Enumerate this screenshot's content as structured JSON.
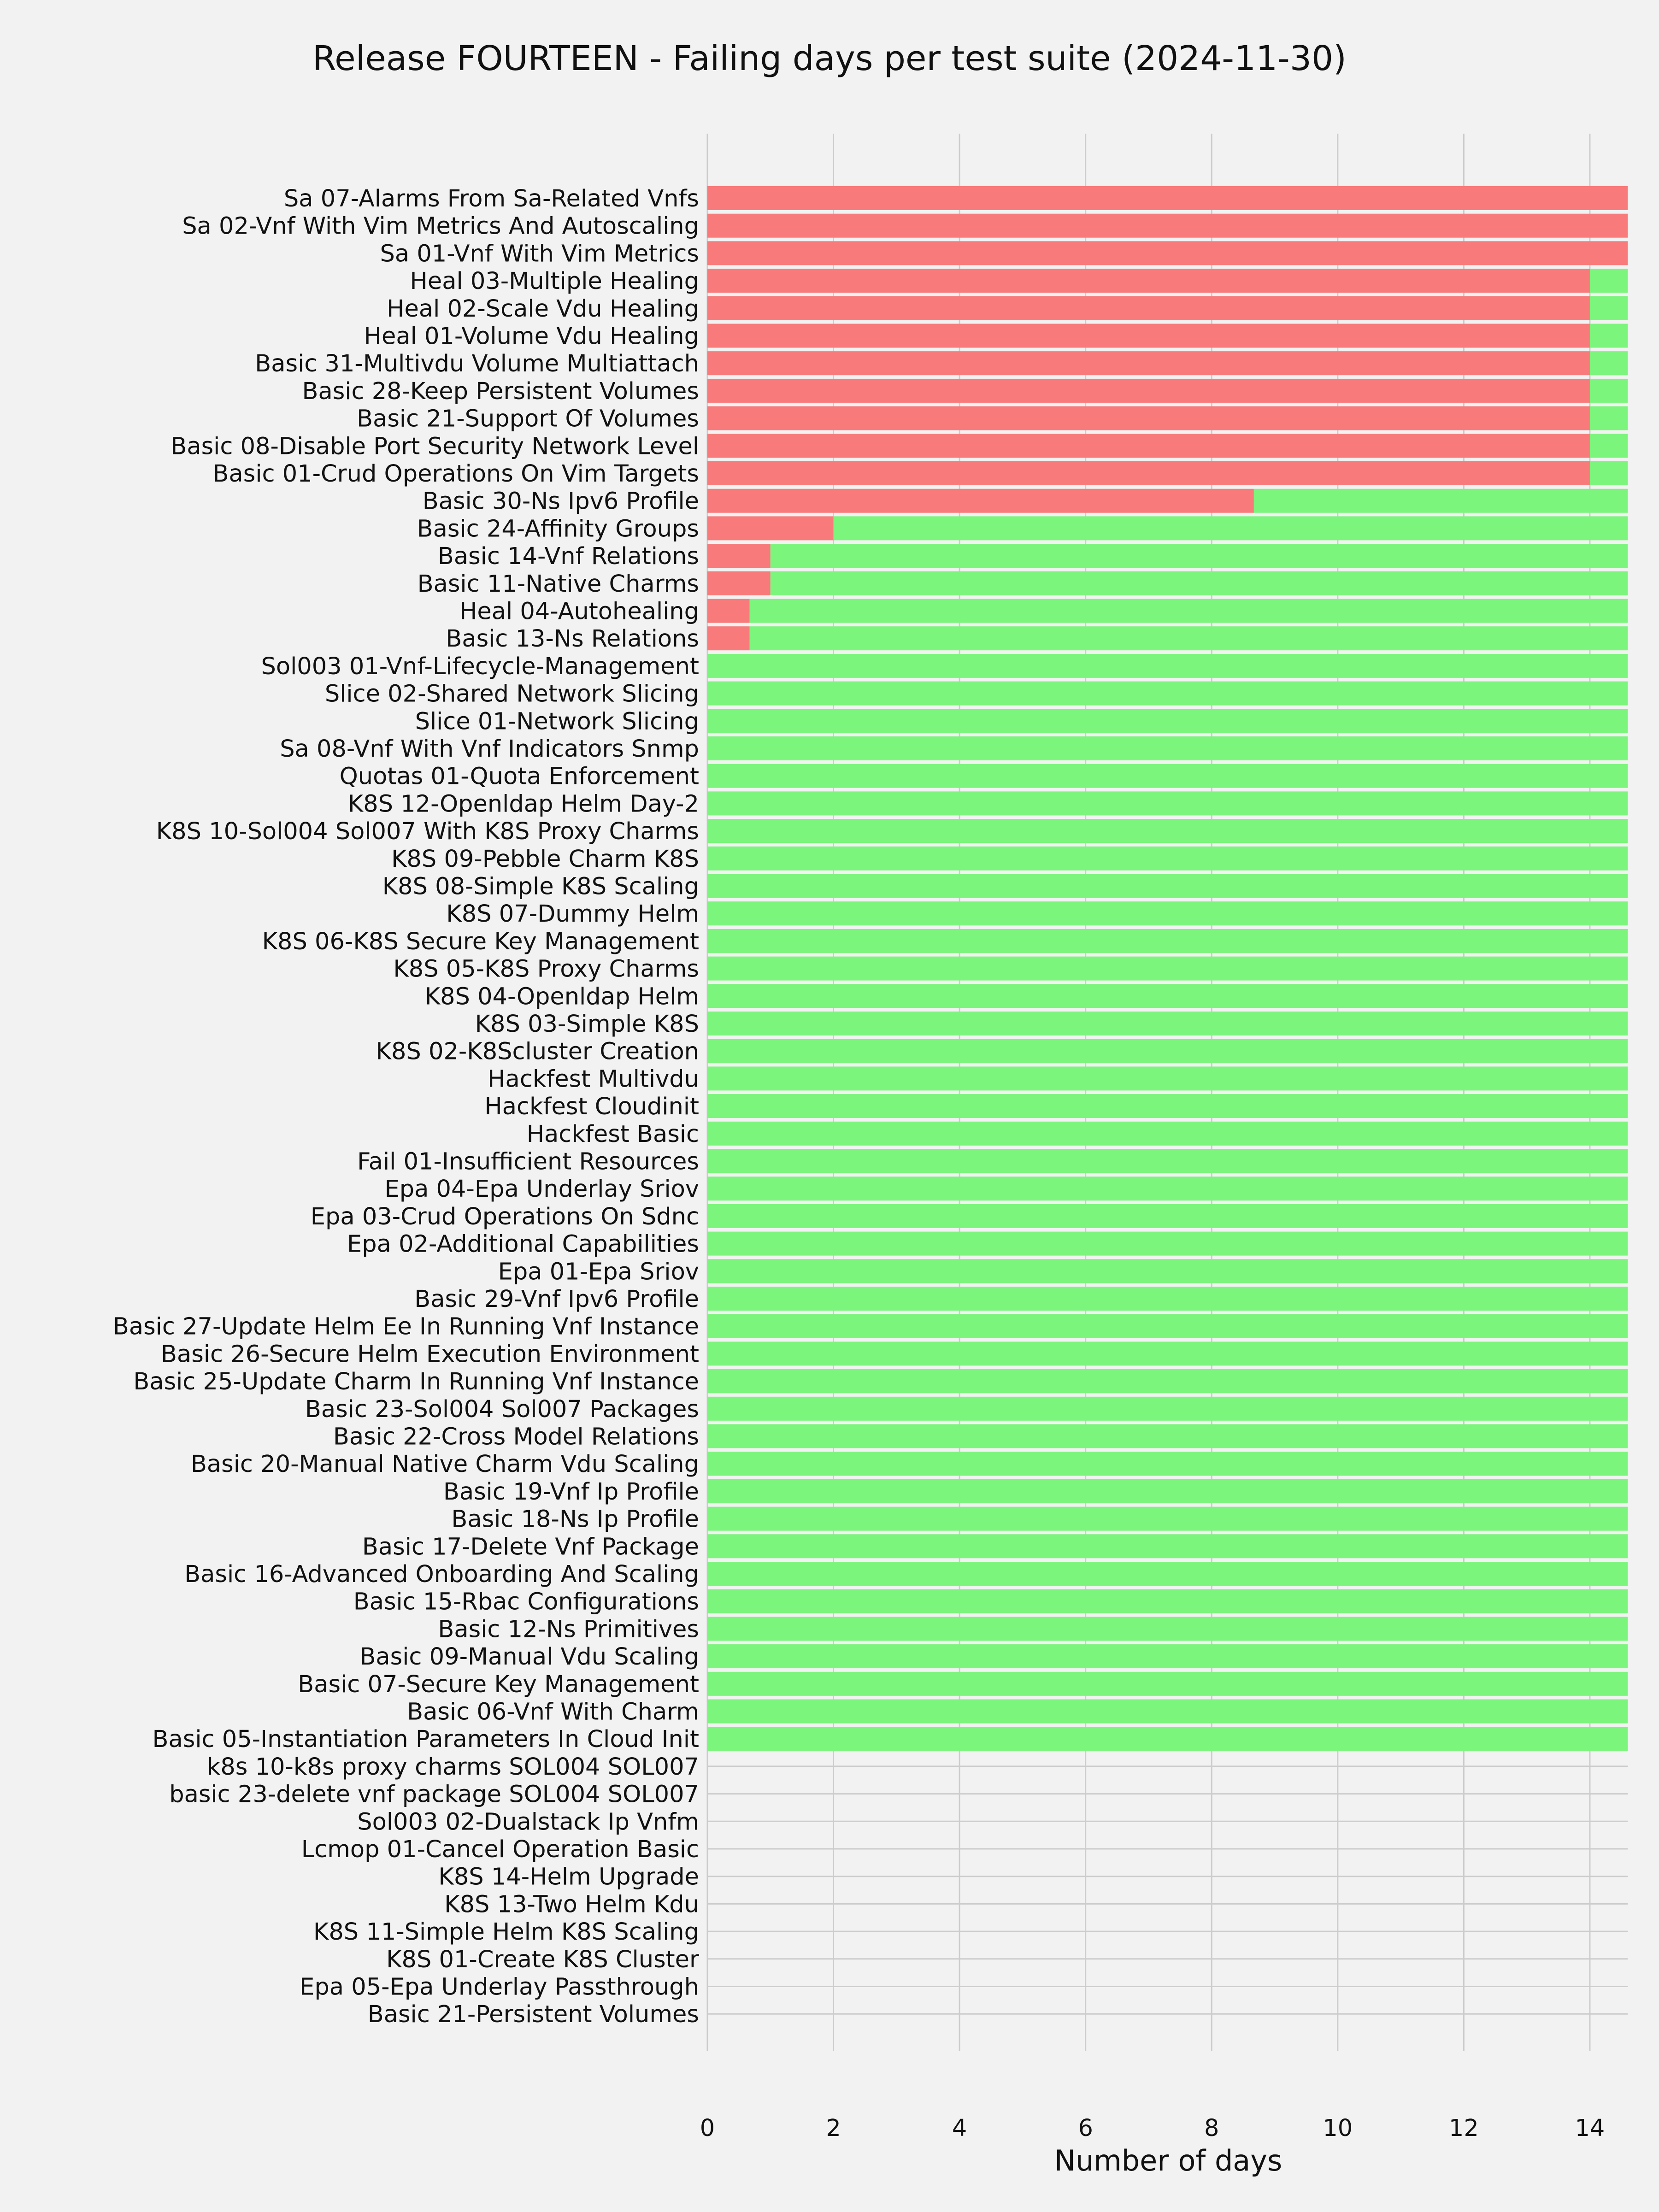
{
  "chart_data": {
    "type": "bar",
    "orientation": "horizontal",
    "stacked": true,
    "title": "Release FOURTEEN - Failing days per test suite (2024-11-30)",
    "xlabel": "Number of days",
    "ylabel": "",
    "xlim": [
      0,
      14.6
    ],
    "xticks": [
      0,
      2,
      4,
      6,
      8,
      10,
      12,
      14
    ],
    "grid": true,
    "legend": "none",
    "colors": {
      "failing": "#f87a7a",
      "passing": "#7bf57b",
      "grid": "#cccccc",
      "background": "#f2f2f2"
    },
    "categories": [
      "Sa 07-Alarms From Sa-Related Vnfs",
      "Sa 02-Vnf With Vim Metrics And Autoscaling",
      "Sa 01-Vnf With Vim Metrics",
      "Heal 03-Multiple Healing",
      "Heal 02-Scale Vdu Healing",
      "Heal 01-Volume Vdu Healing",
      "Basic 31-Multivdu Volume Multiattach",
      "Basic 28-Keep Persistent Volumes",
      "Basic 21-Support Of Volumes",
      "Basic 08-Disable Port Security Network Level",
      "Basic 01-Crud Operations On Vim Targets",
      "Basic 30-Ns Ipv6 Profile",
      "Basic 24-Affinity Groups",
      "Basic 14-Vnf Relations",
      "Basic 11-Native Charms",
      "Heal 04-Autohealing",
      "Basic 13-Ns Relations",
      "Sol003 01-Vnf-Lifecycle-Management",
      "Slice 02-Shared Network Slicing",
      "Slice 01-Network Slicing",
      "Sa 08-Vnf With Vnf Indicators Snmp",
      "Quotas 01-Quota Enforcement",
      "K8S 12-Openldap Helm Day-2",
      "K8S 10-Sol004 Sol007 With K8S Proxy Charms",
      "K8S 09-Pebble Charm K8S",
      "K8S 08-Simple K8S Scaling",
      "K8S 07-Dummy Helm",
      "K8S 06-K8S Secure Key Management",
      "K8S 05-K8S Proxy Charms",
      "K8S 04-Openldap Helm",
      "K8S 03-Simple K8S",
      "K8S 02-K8Scluster Creation",
      "Hackfest Multivdu",
      "Hackfest Cloudinit",
      "Hackfest Basic",
      "Fail 01-Insufficient Resources",
      "Epa 04-Epa Underlay Sriov",
      "Epa 03-Crud Operations On Sdnc",
      "Epa 02-Additional Capabilities",
      "Epa 01-Epa Sriov",
      "Basic 29-Vnf Ipv6 Profile",
      "Basic 27-Update Helm Ee In Running Vnf Instance",
      "Basic 26-Secure Helm Execution Environment",
      "Basic 25-Update Charm In Running Vnf Instance",
      "Basic 23-Sol004 Sol007 Packages",
      "Basic 22-Cross Model Relations",
      "Basic 20-Manual Native Charm Vdu Scaling",
      "Basic 19-Vnf Ip Profile",
      "Basic 18-Ns Ip Profile",
      "Basic 17-Delete Vnf Package",
      "Basic 16-Advanced Onboarding And Scaling",
      "Basic 15-Rbac Configurations",
      "Basic 12-Ns Primitives",
      "Basic 09-Manual Vdu Scaling",
      "Basic 07-Secure Key Management",
      "Basic 06-Vnf With Charm",
      "Basic 05-Instantiation Parameters In Cloud Init",
      "k8s 10-k8s proxy charms SOL004 SOL007",
      "basic 23-delete vnf package SOL004 SOL007",
      "Sol003 02-Dualstack Ip Vnfm",
      "Lcmop 01-Cancel Operation Basic",
      "K8S 14-Helm Upgrade",
      "K8S 13-Two Helm Kdu",
      "K8S 11-Simple Helm K8S Scaling",
      "K8S 01-Create K8S Cluster",
      "Epa 05-Epa Underlay Passthrough",
      "Basic 21-Persistent Volumes"
    ],
    "series": [
      {
        "color": "#f87a7a",
        "values": [
          14.6,
          14.6,
          14.6,
          14,
          14,
          14,
          14,
          14,
          14,
          14,
          14,
          8.67,
          2,
          1,
          1,
          0.67,
          0.67,
          0,
          0,
          0,
          0,
          0,
          0,
          0,
          0,
          0,
          0,
          0,
          0,
          0,
          0,
          0,
          0,
          0,
          0,
          0,
          0,
          0,
          0,
          0,
          0,
          0,
          0,
          0,
          0,
          0,
          0,
          0,
          0,
          0,
          0,
          0,
          0,
          0,
          0,
          0,
          0,
          0,
          0,
          0,
          0,
          0,
          0,
          0,
          0,
          0,
          0
        ]
      },
      {
        "color": "#7bf57b",
        "values": [
          0,
          0,
          0,
          0.6,
          0.6,
          0.6,
          0.6,
          0.6,
          0.6,
          0.6,
          0.6,
          5.93,
          12.6,
          13.6,
          13.6,
          13.93,
          13.93,
          14.6,
          14.6,
          14.6,
          14.6,
          14.6,
          14.6,
          14.6,
          14.6,
          14.6,
          14.6,
          14.6,
          14.6,
          14.6,
          14.6,
          14.6,
          14.6,
          14.6,
          14.6,
          14.6,
          14.6,
          14.6,
          14.6,
          14.6,
          14.6,
          14.6,
          14.6,
          14.6,
          14.6,
          14.6,
          14.6,
          14.6,
          14.6,
          14.6,
          14.6,
          14.6,
          14.6,
          14.6,
          14.6,
          14.6,
          14.6,
          0,
          0,
          0,
          0,
          0,
          0,
          0,
          0,
          0,
          0
        ]
      }
    ]
  }
}
